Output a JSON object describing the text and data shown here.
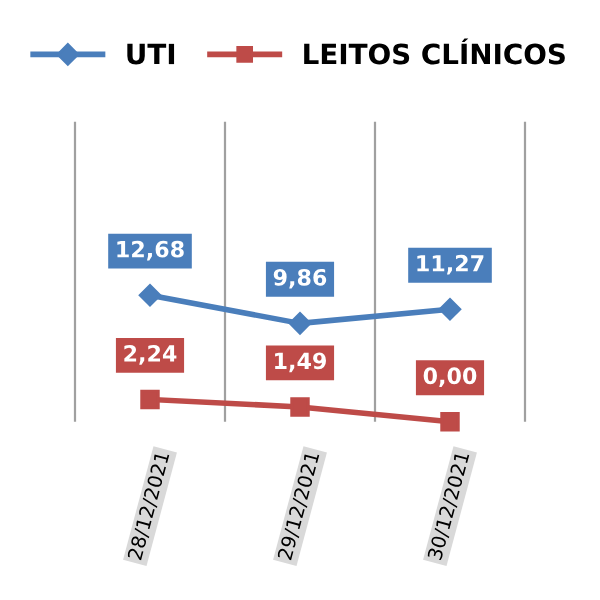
{
  "chart_data": {
    "type": "line",
    "categories": [
      null,
      "28/12/2021",
      "29/12/2021",
      "30/12/2021",
      null
    ],
    "series": [
      {
        "name": "UTI",
        "color": "#4a7ebb",
        "marker": "diamond",
        "values": [
          null,
          12.68,
          9.86,
          11.27,
          null
        ],
        "value_labels": [
          null,
          "12,68",
          "9,86",
          "11,27",
          null
        ]
      },
      {
        "name": "LEITOS CLÍNICOS",
        "color": "#be4b48",
        "marker": "square",
        "values": [
          null,
          2.24,
          1.49,
          0.0,
          null
        ],
        "value_labels": [
          null,
          "2,24",
          "1,49",
          "0,00",
          null
        ]
      }
    ],
    "grid": "x",
    "legend": "top",
    "tick_labels": "x"
  }
}
